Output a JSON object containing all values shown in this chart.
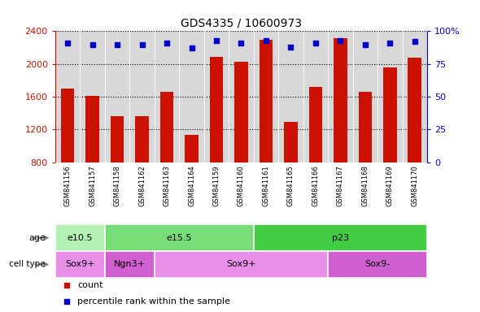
{
  "title": "GDS4335 / 10600973",
  "samples": [
    "GSM841156",
    "GSM841157",
    "GSM841158",
    "GSM841162",
    "GSM841163",
    "GSM841164",
    "GSM841159",
    "GSM841160",
    "GSM841161",
    "GSM841165",
    "GSM841166",
    "GSM841167",
    "GSM841168",
    "GSM841169",
    "GSM841170"
  ],
  "counts": [
    1700,
    1610,
    1360,
    1360,
    1660,
    1130,
    2090,
    2030,
    2290,
    1290,
    1720,
    2310,
    1660,
    1960,
    2080
  ],
  "percentiles": [
    91,
    90,
    90,
    90,
    91,
    87,
    93,
    91,
    93,
    88,
    91,
    93,
    90,
    91,
    92
  ],
  "y_min": 800,
  "y_max": 2400,
  "y_ticks": [
    800,
    1200,
    1600,
    2000,
    2400
  ],
  "y2_ticks": [
    0,
    25,
    50,
    75,
    100
  ],
  "y2_tick_labels": [
    "0",
    "25",
    "50",
    "75",
    "100%"
  ],
  "age_groups": [
    {
      "label": "e10.5",
      "start": 0,
      "end": 2,
      "color": "#b3f0b3"
    },
    {
      "label": "e15.5",
      "start": 2,
      "end": 8,
      "color": "#77dd77"
    },
    {
      "label": "p23",
      "start": 8,
      "end": 15,
      "color": "#44cc44"
    }
  ],
  "cell_groups": [
    {
      "label": "Sox9+",
      "start": 0,
      "end": 2,
      "color": "#e890e8"
    },
    {
      "label": "Ngn3+",
      "start": 2,
      "end": 4,
      "color": "#d060d0"
    },
    {
      "label": "Sox9+",
      "start": 4,
      "end": 11,
      "color": "#e890e8"
    },
    {
      "label": "Sox9-",
      "start": 11,
      "end": 15,
      "color": "#d060d0"
    }
  ],
  "bar_color": "#cc1100",
  "dot_color": "#0000cc",
  "plot_bg_color": "#d8d8d8",
  "xlabel_bg_color": "#c8c8c8",
  "count_label": "count",
  "percentile_label": "percentile rank within the sample",
  "n": 15
}
